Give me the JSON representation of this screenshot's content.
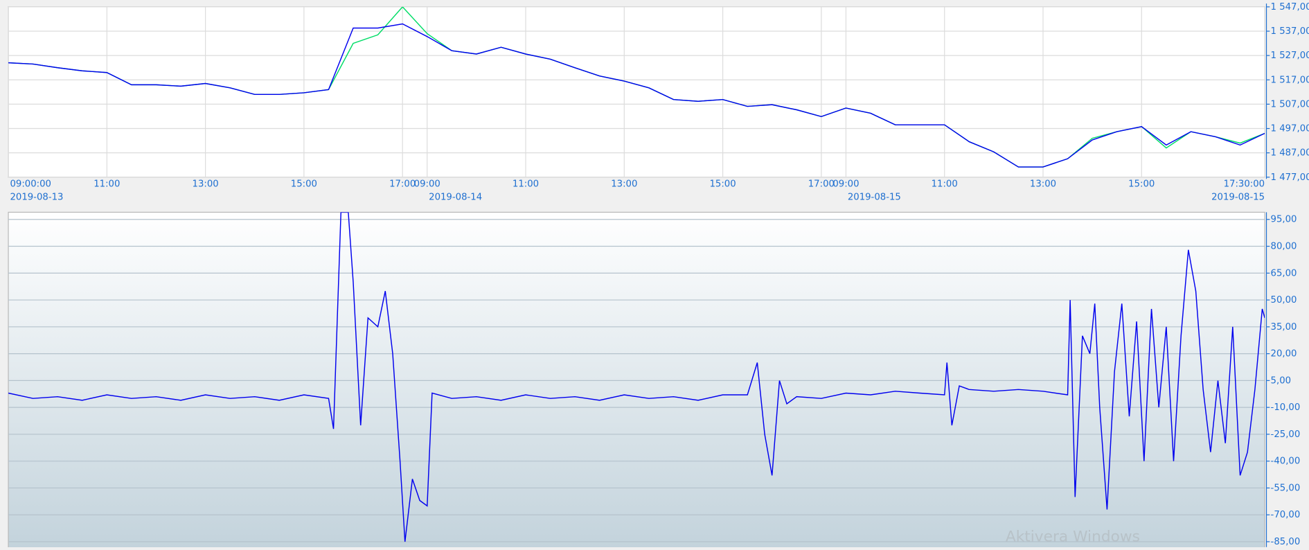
{
  "chart_data": [
    {
      "type": "line",
      "xlim": [
        0,
        25.5
      ],
      "xticks": [
        {
          "value": 0,
          "label": "09:00:00"
        },
        {
          "value": 2,
          "label": "11:00"
        },
        {
          "value": 4,
          "label": "13:00"
        },
        {
          "value": 6,
          "label": "15:00"
        },
        {
          "value": 8,
          "label": "17:00"
        },
        {
          "value": 8.5,
          "label": "09:00"
        },
        {
          "value": 10.5,
          "label": "11:00"
        },
        {
          "value": 12.5,
          "label": "13:00"
        },
        {
          "value": 14.5,
          "label": "15:00"
        },
        {
          "value": 16.5,
          "label": "17:00"
        },
        {
          "value": 17,
          "label": "09:00"
        },
        {
          "value": 19,
          "label": "11:00"
        },
        {
          "value": 21,
          "label": "13:00"
        },
        {
          "value": 23,
          "label": "15:00"
        },
        {
          "value": 25.5,
          "label": "17:30:00"
        }
      ],
      "date_labels": [
        {
          "value": 0,
          "label": "2019-08-13"
        },
        {
          "value": 8.5,
          "label": "2019-08-14"
        },
        {
          "value": 17,
          "label": "2019-08-15"
        },
        {
          "value": 25.5,
          "label": "2019-08-15"
        }
      ],
      "ylim": [
        1477,
        1547
      ],
      "yticks": [
        {
          "value": 1477,
          "label": "1 477,00"
        },
        {
          "value": 1487,
          "label": "1 487,00"
        },
        {
          "value": 1497,
          "label": "1 497,00"
        },
        {
          "value": 1507,
          "label": "1 507,00"
        },
        {
          "value": 1517,
          "label": "1 517,00"
        },
        {
          "value": 1527,
          "label": "1 527,00"
        },
        {
          "value": 1537,
          "label": "1 537,00"
        },
        {
          "value": 1547,
          "label": "1 547,00"
        }
      ],
      "grid": true,
      "x": [
        0,
        0.5,
        1,
        1.5,
        2,
        2.5,
        3,
        3.5,
        4,
        4.5,
        5,
        5.5,
        6,
        6.5,
        7,
        7.5,
        8,
        8.5,
        9,
        9.5,
        10,
        10.5,
        11,
        11.5,
        12,
        12.5,
        13,
        13.5,
        14,
        14.5,
        15,
        15.5,
        16,
        16.5,
        17,
        17.5,
        18,
        18.5,
        19,
        19.5,
        20,
        20.5,
        21,
        21.5,
        22,
        22.5,
        23,
        23.5,
        24,
        24.5,
        25,
        25.5
      ],
      "series": [
        {
          "color": "#00dd66",
          "values": [
            1524,
            1523.5,
            1522,
            1520.7,
            1520,
            1515,
            1515,
            1514.4,
            1515.5,
            1513.7,
            1511,
            1511,
            1511.7,
            1513,
            1532,
            1535.5,
            1547,
            1536,
            1529,
            1527.6,
            1530.4,
            1527.6,
            1525.5,
            1522,
            1518.6,
            1516.5,
            1513.7,
            1508.9,
            1508.2,
            1508.9,
            1506.1,
            1506.8,
            1504.7,
            1501.9,
            1505.4,
            1503.3,
            1498.5,
            1498.5,
            1498.5,
            1491.6,
            1487.4,
            1481.2,
            1481.2,
            1484.6,
            1493,
            1495.7,
            1497.8,
            1489,
            1495.7,
            1493.6,
            1491,
            1495
          ]
        },
        {
          "color": "#0000ee",
          "values": [
            1524,
            1523.5,
            1522,
            1520.7,
            1520,
            1515,
            1515,
            1514.4,
            1515.5,
            1513.7,
            1511,
            1511,
            1511.7,
            1513,
            1538.3,
            1538.3,
            1540,
            1534.8,
            1529,
            1527.6,
            1530.4,
            1527.6,
            1525.5,
            1522,
            1518.6,
            1516.5,
            1513.7,
            1508.9,
            1508.2,
            1508.9,
            1506.1,
            1506.8,
            1504.7,
            1501.9,
            1505.4,
            1503.3,
            1498.5,
            1498.5,
            1498.5,
            1491.6,
            1487.4,
            1481.2,
            1481.2,
            1484.6,
            1492.3,
            1495.7,
            1497.8,
            1490.2,
            1495.7,
            1493.6,
            1490.2,
            1495
          ]
        }
      ]
    },
    {
      "type": "line",
      "xlim": [
        0,
        25.5
      ],
      "ylim": [
        -88,
        99
      ],
      "yticks": [
        {
          "value": 95,
          "label": "95,00"
        },
        {
          "value": 80,
          "label": "80,00"
        },
        {
          "value": 65,
          "label": "65,00"
        },
        {
          "value": 50,
          "label": "50,00"
        },
        {
          "value": 35,
          "label": "35,00"
        },
        {
          "value": 20,
          "label": "20,00"
        },
        {
          "value": 5,
          "label": "5,00"
        },
        {
          "value": -10,
          "label": "-10,00"
        },
        {
          "value": -25,
          "label": "-25,00"
        },
        {
          "value": -40,
          "label": "-40,00"
        },
        {
          "value": -55,
          "label": "-55,00"
        },
        {
          "value": -70,
          "label": "-70,00"
        },
        {
          "value": -85,
          "label": "-85,00"
        }
      ],
      "grid": true,
      "x": [
        0,
        0.5,
        1,
        1.5,
        2,
        2.5,
        3,
        3.5,
        4,
        4.5,
        5,
        5.5,
        6,
        6.5,
        6.6,
        6.75,
        6.9,
        7,
        7.15,
        7.3,
        7.5,
        7.65,
        7.8,
        7.95,
        8.05,
        8.2,
        8.35,
        8.5,
        8.6,
        9,
        9.5,
        10,
        10.5,
        11,
        11.5,
        12,
        12.5,
        13,
        13.5,
        14,
        14.5,
        15,
        15.2,
        15.35,
        15.5,
        15.65,
        15.8,
        16,
        16.5,
        17,
        17.5,
        18,
        18.5,
        19,
        19.05,
        19.15,
        19.3,
        19.5,
        20,
        20.5,
        21,
        21.5,
        21.55,
        21.65,
        21.8,
        21.95,
        22.05,
        22.15,
        22.3,
        22.45,
        22.6,
        22.75,
        22.9,
        23.05,
        23.2,
        23.35,
        23.5,
        23.65,
        23.8,
        23.95,
        24.1,
        24.25,
        24.4,
        24.55,
        24.7,
        24.85,
        25,
        25.15,
        25.3,
        25.45,
        25.5
      ],
      "series": [
        {
          "color": "#0000ee",
          "values": [
            -2,
            -5,
            -4,
            -6,
            -3,
            -5,
            -4,
            -6,
            -3,
            -5,
            -4,
            -6,
            -3,
            -5,
            -22,
            99,
            99,
            60,
            -20,
            40,
            35,
            55,
            20,
            -40,
            -85,
            -50,
            -62,
            -65,
            -2,
            -5,
            -4,
            -6,
            -3,
            -5,
            -4,
            -6,
            -3,
            -5,
            -4,
            -6,
            -3,
            -3,
            15,
            -25,
            -48,
            5,
            -8,
            -4,
            -5,
            -2,
            -3,
            -1,
            -2,
            -3,
            15,
            -20,
            2,
            0,
            -1,
            0,
            -1,
            -3,
            50,
            -60,
            30,
            20,
            48,
            -10,
            -67,
            10,
            48,
            -15,
            38,
            -40,
            45,
            -10,
            35,
            -40,
            30,
            78,
            55,
            0,
            -35,
            5,
            -30,
            35,
            -48,
            -35,
            0,
            45,
            40
          ]
        }
      ]
    }
  ],
  "watermark": "Aktivera Windows"
}
